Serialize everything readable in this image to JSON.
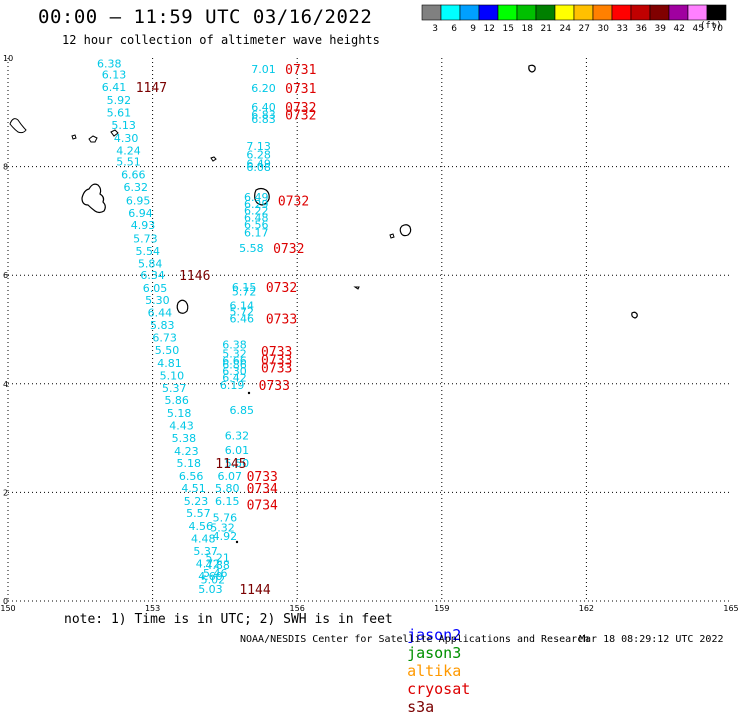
{
  "header": {
    "title": "00:00 – 11:59 UTC 03/16/2022",
    "subtitle": "12 hour collection of altimeter wave heights"
  },
  "legend": {
    "bins": [
      {
        "label": "3",
        "color": "#808080"
      },
      {
        "label": "6",
        "color": "#00ffff"
      },
      {
        "label": "9",
        "color": "#00a0ff"
      },
      {
        "label": "12",
        "color": "#0000ff"
      },
      {
        "label": "15",
        "color": "#00ff00"
      },
      {
        "label": "18",
        "color": "#00c000"
      },
      {
        "label": "21",
        "color": "#008000"
      },
      {
        "label": "24",
        "color": "#ffff00"
      },
      {
        "label": "27",
        "color": "#ffc000"
      },
      {
        "label": "30",
        "color": "#ff8000"
      },
      {
        "label": "33",
        "color": "#ff0000"
      },
      {
        "label": "36",
        "color": "#c00000"
      },
      {
        "label": "39",
        "color": "#800000"
      },
      {
        "label": "42",
        "color": "#a000a0"
      },
      {
        "label": "45",
        "color": "#ff80ff"
      },
      {
        "label": "70",
        "color": "#000000"
      }
    ],
    "units": "(ft)"
  },
  "axes": {
    "x_ticks": [
      "150",
      "153",
      "156",
      "159",
      "162",
      "165"
    ],
    "y_ticks": [
      "0",
      "2",
      "4",
      "6",
      "8",
      "10"
    ]
  },
  "colors": {
    "cyan": "#00c8e6",
    "red": "#dd0000",
    "darkred": "#7a0000",
    "jason2": "#0000ff",
    "jason3": "#009000",
    "altika": "#ff9900",
    "cryosat": "#dd0000",
    "s3a": "#7a0000"
  },
  "wave_heights": [
    {
      "text": "6.38",
      "lon": 152.1,
      "lat": 9.9
    },
    {
      "text": "6.13",
      "lon": 152.2,
      "lat": 9.7
    },
    {
      "text": "6.41",
      "lon": 152.2,
      "lat": 9.47
    },
    {
      "text": "5.92",
      "lon": 152.3,
      "lat": 9.23
    },
    {
      "text": "5.61",
      "lon": 152.3,
      "lat": 9.0
    },
    {
      "text": "5.13",
      "lon": 152.4,
      "lat": 8.77
    },
    {
      "text": "4.30",
      "lon": 152.45,
      "lat": 8.53
    },
    {
      "text": "4.24",
      "lon": 152.5,
      "lat": 8.3
    },
    {
      "text": "5.51",
      "lon": 152.5,
      "lat": 8.09
    },
    {
      "text": "6.66",
      "lon": 152.6,
      "lat": 7.85
    },
    {
      "text": "6.32",
      "lon": 152.65,
      "lat": 7.62
    },
    {
      "text": "6.95",
      "lon": 152.7,
      "lat": 7.38
    },
    {
      "text": "6.94",
      "lon": 152.75,
      "lat": 7.15
    },
    {
      "text": "4.93",
      "lon": 152.8,
      "lat": 6.92
    },
    {
      "text": "5.73",
      "lon": 152.85,
      "lat": 6.68
    },
    {
      "text": "5.54",
      "lon": 152.9,
      "lat": 6.45
    },
    {
      "text": "5.84",
      "lon": 152.95,
      "lat": 6.22
    },
    {
      "text": "6.34",
      "lon": 153.0,
      "lat": 6.0
    },
    {
      "text": "6.05",
      "lon": 153.05,
      "lat": 5.76
    },
    {
      "text": "5.30",
      "lon": 153.1,
      "lat": 5.54
    },
    {
      "text": "6.44",
      "lon": 153.15,
      "lat": 5.31
    },
    {
      "text": "5.83",
      "lon": 153.2,
      "lat": 5.08
    },
    {
      "text": "6.73",
      "lon": 153.25,
      "lat": 4.85
    },
    {
      "text": "5.50",
      "lon": 153.3,
      "lat": 4.62
    },
    {
      "text": "4.81",
      "lon": 153.35,
      "lat": 4.38
    },
    {
      "text": "5.10",
      "lon": 153.4,
      "lat": 4.15
    },
    {
      "text": "5.37",
      "lon": 153.45,
      "lat": 3.92
    },
    {
      "text": "5.86",
      "lon": 153.5,
      "lat": 3.7
    },
    {
      "text": "5.18",
      "lon": 153.55,
      "lat": 3.46
    },
    {
      "text": "4.43",
      "lon": 153.6,
      "lat": 3.23
    },
    {
      "text": "5.38",
      "lon": 153.65,
      "lat": 3.0
    },
    {
      "text": "4.23",
      "lon": 153.7,
      "lat": 2.76
    },
    {
      "text": "5.18",
      "lon": 153.75,
      "lat": 2.54
    },
    {
      "text": "6.56",
      "lon": 153.8,
      "lat": 2.3
    },
    {
      "text": "4.51",
      "lon": 153.85,
      "lat": 2.08
    },
    {
      "text": "5.23",
      "lon": 153.9,
      "lat": 1.84
    },
    {
      "text": "5.57",
      "lon": 153.95,
      "lat": 1.62
    },
    {
      "text": "4.56",
      "lon": 154.0,
      "lat": 1.38
    },
    {
      "text": "4.48",
      "lon": 154.05,
      "lat": 1.15
    },
    {
      "text": "5.37",
      "lon": 154.1,
      "lat": 0.92
    },
    {
      "text": "4.72",
      "lon": 154.15,
      "lat": 0.69
    },
    {
      "text": "4.60",
      "lon": 154.2,
      "lat": 0.46
    },
    {
      "text": "5.03",
      "lon": 154.2,
      "lat": 0.22
    },
    {
      "text": "6.85",
      "lon": 154.85,
      "lat": 3.52
    },
    {
      "text": "6.32",
      "lon": 154.75,
      "lat": 3.05
    },
    {
      "text": "6.01",
      "lon": 154.75,
      "lat": 2.78
    },
    {
      "text": "5.50",
      "lon": 154.75,
      "lat": 2.54
    },
    {
      "text": "6.07",
      "lon": 154.6,
      "lat": 2.3
    },
    {
      "text": "5.80",
      "lon": 154.55,
      "lat": 2.08
    },
    {
      "text": "6.15",
      "lon": 154.55,
      "lat": 1.84
    },
    {
      "text": "5.76",
      "lon": 154.5,
      "lat": 1.54
    },
    {
      "text": "5.32",
      "lon": 154.45,
      "lat": 1.35
    },
    {
      "text": "4.92",
      "lon": 154.5,
      "lat": 1.2
    },
    {
      "text": "5.21",
      "lon": 154.35,
      "lat": 0.8
    },
    {
      "text": "4.88",
      "lon": 154.35,
      "lat": 0.66
    },
    {
      "text": "5.46",
      "lon": 154.3,
      "lat": 0.52
    },
    {
      "text": "5.02",
      "lon": 154.25,
      "lat": 0.4
    },
    {
      "text": "7.01",
      "lon": 155.3,
      "lat": 9.8
    },
    {
      "text": "6.20",
      "lon": 155.3,
      "lat": 9.45
    },
    {
      "text": "6.40",
      "lon": 155.3,
      "lat": 9.1
    },
    {
      "text": "6.83",
      "lon": 155.3,
      "lat": 8.96
    },
    {
      "text": "6.83",
      "lon": 155.3,
      "lat": 8.88
    },
    {
      "text": "7.13",
      "lon": 155.2,
      "lat": 8.38
    },
    {
      "text": "6.28",
      "lon": 155.2,
      "lat": 8.22
    },
    {
      "text": "6.49",
      "lon": 155.2,
      "lat": 8.06
    },
    {
      "text": "6.08",
      "lon": 155.2,
      "lat": 7.99
    },
    {
      "text": "6.49",
      "lon": 155.15,
      "lat": 7.44
    },
    {
      "text": "6.29",
      "lon": 155.15,
      "lat": 7.31
    },
    {
      "text": "6.22",
      "lon": 155.15,
      "lat": 7.19
    },
    {
      "text": "6.48",
      "lon": 155.15,
      "lat": 7.06
    },
    {
      "text": "6.56",
      "lon": 155.15,
      "lat": 6.93
    },
    {
      "text": "6.17",
      "lon": 155.15,
      "lat": 6.79
    },
    {
      "text": "5.58",
      "lon": 155.05,
      "lat": 6.5
    },
    {
      "text": "6.15",
      "lon": 154.9,
      "lat": 5.78
    },
    {
      "text": "5.72",
      "lon": 154.9,
      "lat": 5.7
    },
    {
      "text": "6.14",
      "lon": 154.85,
      "lat": 5.44
    },
    {
      "text": "5.72",
      "lon": 154.85,
      "lat": 5.33
    },
    {
      "text": "6.46",
      "lon": 154.85,
      "lat": 5.2
    },
    {
      "text": "6.38",
      "lon": 154.7,
      "lat": 4.72
    },
    {
      "text": "5.32",
      "lon": 154.7,
      "lat": 4.56
    },
    {
      "text": "6.66",
      "lon": 154.7,
      "lat": 4.43
    },
    {
      "text": "6.86",
      "lon": 154.7,
      "lat": 4.36
    },
    {
      "text": "6.30",
      "lon": 154.7,
      "lat": 4.24
    },
    {
      "text": "6.42",
      "lon": 154.7,
      "lat": 4.12
    },
    {
      "text": "6.19",
      "lon": 154.65,
      "lat": 3.98
    }
  ],
  "time_labels": [
    {
      "text": "1147",
      "lon": 152.65,
      "lat": 9.47,
      "sat": "s3a"
    },
    {
      "text": "1146",
      "lon": 153.55,
      "lat": 6.0,
      "sat": "s3a"
    },
    {
      "text": "1145",
      "lon": 154.3,
      "lat": 2.54,
      "sat": "s3a"
    },
    {
      "text": "1144",
      "lon": 154.8,
      "lat": 0.22,
      "sat": "s3a"
    },
    {
      "text": "0731",
      "lon": 155.75,
      "lat": 9.8,
      "sat": "cryosat"
    },
    {
      "text": "0731",
      "lon": 155.75,
      "lat": 9.45,
      "sat": "cryosat"
    },
    {
      "text": "0732",
      "lon": 155.75,
      "lat": 9.1,
      "sat": "cryosat"
    },
    {
      "text": "0732",
      "lon": 155.75,
      "lat": 8.96,
      "sat": "cryosat"
    },
    {
      "text": "0732",
      "lon": 155.6,
      "lat": 7.38,
      "sat": "cryosat"
    },
    {
      "text": "0732",
      "lon": 155.5,
      "lat": 6.5,
      "sat": "cryosat"
    },
    {
      "text": "0732",
      "lon": 155.35,
      "lat": 5.78,
      "sat": "cryosat"
    },
    {
      "text": "0733",
      "lon": 155.35,
      "lat": 5.2,
      "sat": "cryosat"
    },
    {
      "text": "0733",
      "lon": 155.25,
      "lat": 4.6,
      "sat": "cryosat"
    },
    {
      "text": "0733",
      "lon": 155.25,
      "lat": 4.45,
      "sat": "cryosat"
    },
    {
      "text": "0733",
      "lon": 155.25,
      "lat": 4.3,
      "sat": "cryosat"
    },
    {
      "text": "0733",
      "lon": 155.2,
      "lat": 3.98,
      "sat": "cryosat"
    },
    {
      "text": "0733",
      "lon": 154.95,
      "lat": 2.3,
      "sat": "cryosat"
    },
    {
      "text": "0734",
      "lon": 154.95,
      "lat": 2.08,
      "sat": "cryosat"
    },
    {
      "text": "0734",
      "lon": 154.95,
      "lat": 1.78,
      "sat": "cryosat"
    }
  ],
  "footer": {
    "note": "note: 1) Time is in UTC; 2) SWH is in feet",
    "satellites": [
      "jason2",
      "jason3",
      "altika",
      "cryosat",
      "s3a"
    ],
    "credit": "NOAA/NESDIS Center for Satellite Applications and Research",
    "timestamp": "Mar 18 08:29:12 UTC 2022"
  }
}
